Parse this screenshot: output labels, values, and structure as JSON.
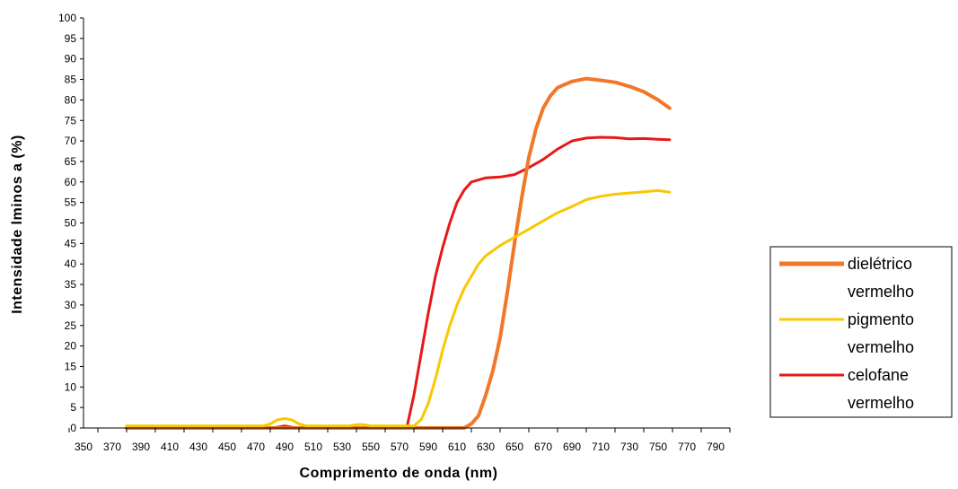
{
  "chart_data": {
    "type": "line",
    "title": "",
    "xlabel": "Comprimento de onda (nm)",
    "ylabel": "Intensidade lminos a (%)",
    "xlim": [
      350,
      800
    ],
    "ylim": [
      0,
      100
    ],
    "x_ticks": [
      350,
      370,
      390,
      410,
      430,
      450,
      470,
      490,
      510,
      530,
      550,
      570,
      590,
      610,
      630,
      650,
      670,
      690,
      710,
      730,
      750,
      770,
      790
    ],
    "y_ticks": [
      0,
      5,
      10,
      15,
      20,
      25,
      30,
      35,
      40,
      45,
      50,
      55,
      60,
      65,
      70,
      75,
      80,
      85,
      90,
      95,
      100
    ],
    "grid": false,
    "legend_position": "right",
    "series": [
      {
        "name": "dielétrico vermelho",
        "legend_lines": [
          "dielétrico",
          "vermelho"
        ],
        "color": "#F07828",
        "x": [
          380,
          480,
          500,
          560,
          600,
          615,
          620,
          625,
          630,
          635,
          640,
          645,
          650,
          655,
          660,
          665,
          670,
          675,
          680,
          690,
          700,
          710,
          720,
          730,
          740,
          750,
          758
        ],
        "y": [
          0,
          0,
          0,
          0,
          0,
          0,
          1,
          3,
          8,
          14,
          22,
          33,
          45,
          56,
          66,
          73,
          78,
          81,
          83,
          84.5,
          85.2,
          84.8,
          84.3,
          83.3,
          82,
          80,
          78
        ]
      },
      {
        "name": "pigmento vermelho",
        "legend_lines": [
          "pigmento",
          "vermelho"
        ],
        "color": "#F8C800",
        "x": [
          380,
          475,
          480,
          485,
          490,
          495,
          500,
          505,
          520,
          535,
          540,
          545,
          550,
          560,
          575,
          580,
          585,
          590,
          595,
          600,
          605,
          610,
          615,
          620,
          625,
          630,
          640,
          650,
          660,
          670,
          680,
          690,
          700,
          710,
          720,
          730,
          740,
          750,
          758
        ],
        "y": [
          0.5,
          0.5,
          1,
          2,
          2.3,
          2,
          1,
          0.5,
          0.5,
          0.5,
          0.8,
          0.8,
          0.5,
          0.5,
          0.5,
          0.5,
          2,
          6,
          12,
          19,
          25,
          30,
          34,
          37,
          40,
          42,
          44.5,
          46.5,
          48.5,
          50.5,
          52.5,
          54,
          55.7,
          56.5,
          57,
          57.3,
          57.6,
          57.9,
          57.5
        ]
      },
      {
        "name": "celofane vermelho",
        "legend_lines": [
          "celofane",
          "vermelho"
        ],
        "color": "#E81818",
        "x": [
          380,
          480,
          485,
          490,
          495,
          500,
          520,
          570,
          575,
          580,
          585,
          590,
          595,
          600,
          605,
          610,
          615,
          620,
          630,
          640,
          650,
          660,
          670,
          680,
          690,
          700,
          710,
          720,
          730,
          740,
          750,
          758
        ],
        "y": [
          0,
          0,
          0.2,
          0.5,
          0.2,
          0,
          0,
          0,
          0,
          8,
          18,
          28,
          37,
          44,
          50,
          55,
          58,
          60,
          61,
          61.2,
          61.8,
          63.5,
          65.5,
          68,
          70,
          70.7,
          70.9,
          70.8,
          70.5,
          70.6,
          70.4,
          70.3
        ]
      }
    ]
  }
}
